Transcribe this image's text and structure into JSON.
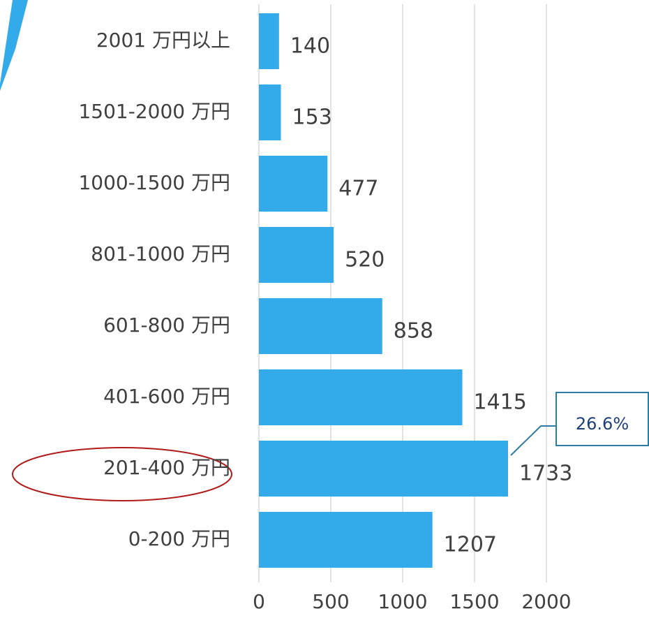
{
  "chart_data": {
    "type": "barh",
    "categories": [
      "2001 万円以上",
      "1501-2000 万円",
      "1000-1500 万円",
      "801-1000 万円",
      "601-800 万円",
      "401-600 万円",
      "201-400 万円",
      "0-200 万円"
    ],
    "values": [
      140,
      153,
      477,
      520,
      858,
      1415,
      1733,
      1207
    ],
    "color": "#33aaea",
    "xlim": [
      0,
      2000
    ],
    "xticks": [
      0,
      500,
      1000,
      1500,
      2000
    ],
    "grid": true,
    "annotation": "26.6%"
  }
}
